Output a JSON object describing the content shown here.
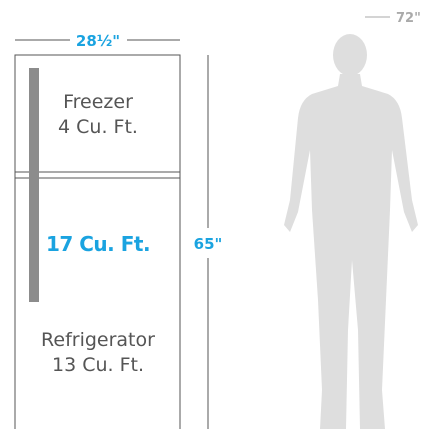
{
  "dimensions": {
    "width": "28½\"",
    "height": "65\"",
    "person_height": "72\""
  },
  "freezer": {
    "label": "Freezer",
    "capacity": "4 Cu. Ft."
  },
  "total_capacity": "17 Cu. Ft.",
  "refrigerator": {
    "label": "Refrigerator",
    "capacity": "13 Cu. Ft."
  }
}
